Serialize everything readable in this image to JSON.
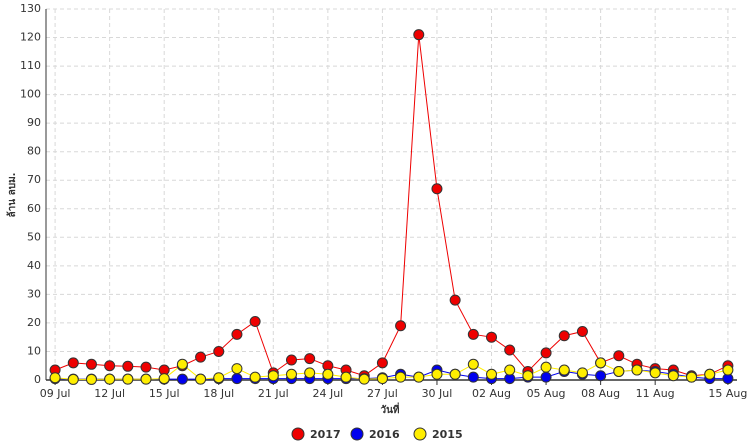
{
  "chart_data": {
    "type": "line",
    "y_label": "ล้าน ลบม.",
    "x_label": "วันที่",
    "categories": [
      "09 Jul",
      null,
      null,
      "12 Jul",
      null,
      null,
      "15 Jul",
      null,
      null,
      "18 Jul",
      null,
      null,
      "21 Jul",
      null,
      null,
      "24 Jul",
      null,
      null,
      "27 Jul",
      null,
      null,
      "30 Jul",
      null,
      null,
      "02 Aug",
      null,
      null,
      "05 Aug",
      null,
      null,
      "08 Aug",
      null,
      null,
      "11 Aug",
      null,
      null,
      null,
      "15 Aug"
    ],
    "series": [
      {
        "name": "2017",
        "color": "#ee0000",
        "values": [
          3.5,
          6,
          5.5,
          5,
          4.8,
          4.5,
          3.5,
          5,
          8,
          10,
          16,
          20.5,
          2.5,
          7,
          7.5,
          5,
          3.5,
          1.5,
          6,
          19,
          121,
          67,
          28,
          16,
          15,
          10.5,
          3,
          9.5,
          15.5,
          17,
          6,
          8.5,
          5.5,
          4,
          3.5,
          1.5,
          2,
          5
        ]
      },
      {
        "name": "2016",
        "color": "#0000ee",
        "values": [
          0.5,
          0.3,
          0.3,
          0.3,
          0.3,
          0.3,
          0.3,
          0.3,
          0.3,
          0.5,
          0.5,
          0.5,
          0.5,
          0.5,
          0.5,
          0.5,
          0.5,
          0.5,
          0.8,
          2,
          1,
          3.5,
          2,
          1,
          0.5,
          0.5,
          1,
          1,
          3,
          2,
          1.5,
          3,
          3.5,
          3,
          2,
          1,
          0.5,
          0.5
        ]
      },
      {
        "name": "2015",
        "color": "#ffee00",
        "values": [
          0.8,
          0.2,
          0.2,
          0.3,
          0.3,
          0.3,
          0.5,
          5.5,
          0.3,
          0.8,
          4,
          1,
          1.5,
          2,
          2.5,
          2,
          1,
          0.3,
          0.5,
          1,
          1,
          2,
          2,
          5.5,
          2,
          3.5,
          1.5,
          4.5,
          3.5,
          2.5,
          6,
          3,
          3.5,
          2.5,
          1.5,
          1,
          2,
          3.5
        ]
      }
    ],
    "ylim": [
      0,
      130
    ],
    "yticks": [
      0,
      10,
      20,
      30,
      40,
      50,
      60,
      70,
      80,
      90,
      100,
      110,
      120,
      130
    ],
    "grid": true
  }
}
